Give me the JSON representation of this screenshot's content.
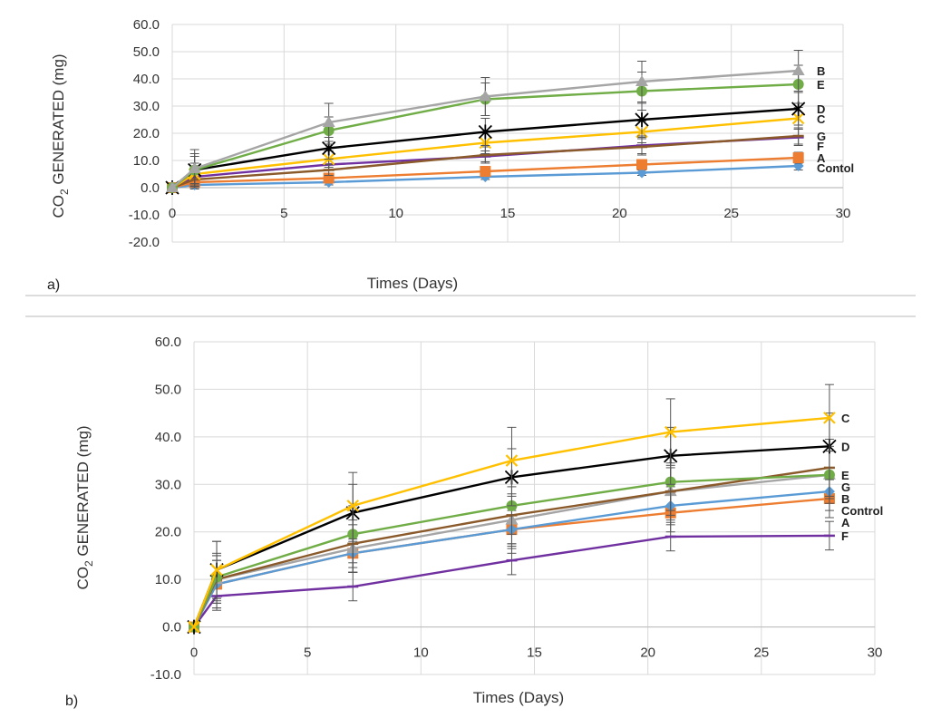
{
  "colors": {
    "Contol": "#5b9bd5",
    "Control": "#5b9bd5",
    "A": "#ed7d31",
    "B": "#a5a5a5",
    "C": "#ffc000",
    "D": "#000000",
    "E": "#70ad47",
    "F": "#7030a0",
    "G": "#8b5a2b"
  },
  "markers": {
    "Contol": "diamond",
    "Control": "diamond",
    "A": "square",
    "B": "triangle",
    "C": "x",
    "D": "star",
    "E": "circle",
    "F": "bar",
    "G": "bar"
  },
  "chart_data": [
    {
      "type": "line",
      "panel_label": "a)",
      "xlabel": "Times (Days)",
      "ylabel": "CO2 GENERATED (mg)",
      "ylabel_main": "CO",
      "ylabel_sub": "2",
      "ylabel_rest": " GENERATED (mg)",
      "xlim": [
        0,
        30
      ],
      "ylim": [
        -20,
        60
      ],
      "xticks": [
        0,
        5,
        10,
        15,
        20,
        25,
        30
      ],
      "yticks": [
        -20,
        -10,
        0,
        10,
        20,
        30,
        40,
        50,
        60
      ],
      "x": [
        0,
        1,
        7,
        14,
        21,
        28
      ],
      "grid": true,
      "series": [
        {
          "name": "Contol",
          "values": [
            0,
            1,
            2,
            4,
            5.5,
            8
          ],
          "err": [
            0,
            1.5,
            1,
            1,
            1,
            1.5
          ]
        },
        {
          "name": "A",
          "values": [
            0,
            2,
            3.5,
            6,
            8.5,
            11
          ],
          "err": [
            0,
            2,
            1,
            1,
            1,
            2
          ]
        },
        {
          "name": "F",
          "values": [
            0,
            4,
            8.5,
            11.5,
            15.5,
            18.5
          ],
          "err": [
            0,
            3,
            2,
            2,
            3,
            3
          ]
        },
        {
          "name": "G",
          "values": [
            0,
            3,
            6.5,
            12,
            15,
            19
          ],
          "err": [
            0,
            3,
            2,
            3,
            3,
            3
          ]
        },
        {
          "name": "C",
          "values": [
            0,
            5,
            10.5,
            16.5,
            20.5,
            25.5
          ],
          "err": [
            0,
            4,
            3,
            4,
            4,
            4
          ]
        },
        {
          "name": "D",
          "values": [
            0,
            6.5,
            14.5,
            20.5,
            25,
            29
          ],
          "err": [
            0,
            5,
            4,
            5,
            6,
            6
          ]
        },
        {
          "name": "E",
          "values": [
            0,
            6.5,
            21,
            32.5,
            35.5,
            38
          ],
          "err": [
            0,
            6,
            5,
            6,
            7,
            7
          ]
        },
        {
          "name": "B",
          "values": [
            0,
            7,
            24,
            33.5,
            39,
            43
          ],
          "err": [
            0,
            7,
            7,
            7,
            7.5,
            7.5
          ]
        }
      ],
      "label_order": [
        "B",
        "E",
        "D",
        "C",
        "G",
        "F",
        "A",
        "Contol"
      ]
    },
    {
      "type": "line",
      "panel_label": "b)",
      "xlabel": "Times (Days)",
      "ylabel": "CO2 GENERATED (mg)",
      "ylabel_main": "CO",
      "ylabel_sub": "2",
      "ylabel_rest": " GENERATED (mg)",
      "xlim": [
        0,
        30
      ],
      "ylim": [
        -10,
        60
      ],
      "xticks": [
        0,
        5,
        10,
        15,
        20,
        25,
        30
      ],
      "yticks": [
        -10,
        0,
        10,
        20,
        30,
        40,
        50,
        60
      ],
      "x": [
        0,
        1,
        7,
        14,
        21,
        28
      ],
      "grid": true,
      "series": [
        {
          "name": "F",
          "values": [
            0,
            6.5,
            8.5,
            14,
            19,
            19.2
          ],
          "err": [
            0,
            3,
            3,
            3,
            3,
            3
          ]
        },
        {
          "name": "A",
          "values": [
            0,
            9,
            15.5,
            20.5,
            24,
            27
          ],
          "err": [
            0,
            5,
            4,
            4,
            4,
            4
          ]
        },
        {
          "name": "Control",
          "values": [
            0,
            9,
            15.5,
            20.5,
            25.5,
            28.5
          ],
          "err": [
            0,
            5,
            4,
            5,
            4,
            4
          ]
        },
        {
          "name": "B",
          "values": [
            0,
            10,
            16.5,
            22.5,
            28.5,
            32
          ],
          "err": [
            0,
            5,
            5,
            5,
            5,
            5
          ]
        },
        {
          "name": "G",
          "values": [
            0,
            10,
            17.5,
            23.5,
            28.5,
            33.5
          ],
          "err": [
            0,
            5,
            5,
            6,
            6,
            6
          ]
        },
        {
          "name": "E",
          "values": [
            0,
            10.5,
            19.5,
            25.5,
            30.5,
            32
          ],
          "err": [
            0,
            5,
            6,
            6,
            6,
            6
          ]
        },
        {
          "name": "D",
          "values": [
            0,
            12,
            24,
            31.5,
            36,
            38
          ],
          "err": [
            0,
            6,
            6,
            6,
            6,
            7
          ]
        },
        {
          "name": "C",
          "values": [
            0,
            12,
            25.5,
            35,
            41,
            44
          ],
          "err": [
            0,
            6,
            7,
            7,
            7,
            7
          ]
        }
      ],
      "label_order": [
        "C",
        "D",
        "E",
        "G",
        "B",
        "Control",
        "A",
        "F"
      ]
    }
  ]
}
